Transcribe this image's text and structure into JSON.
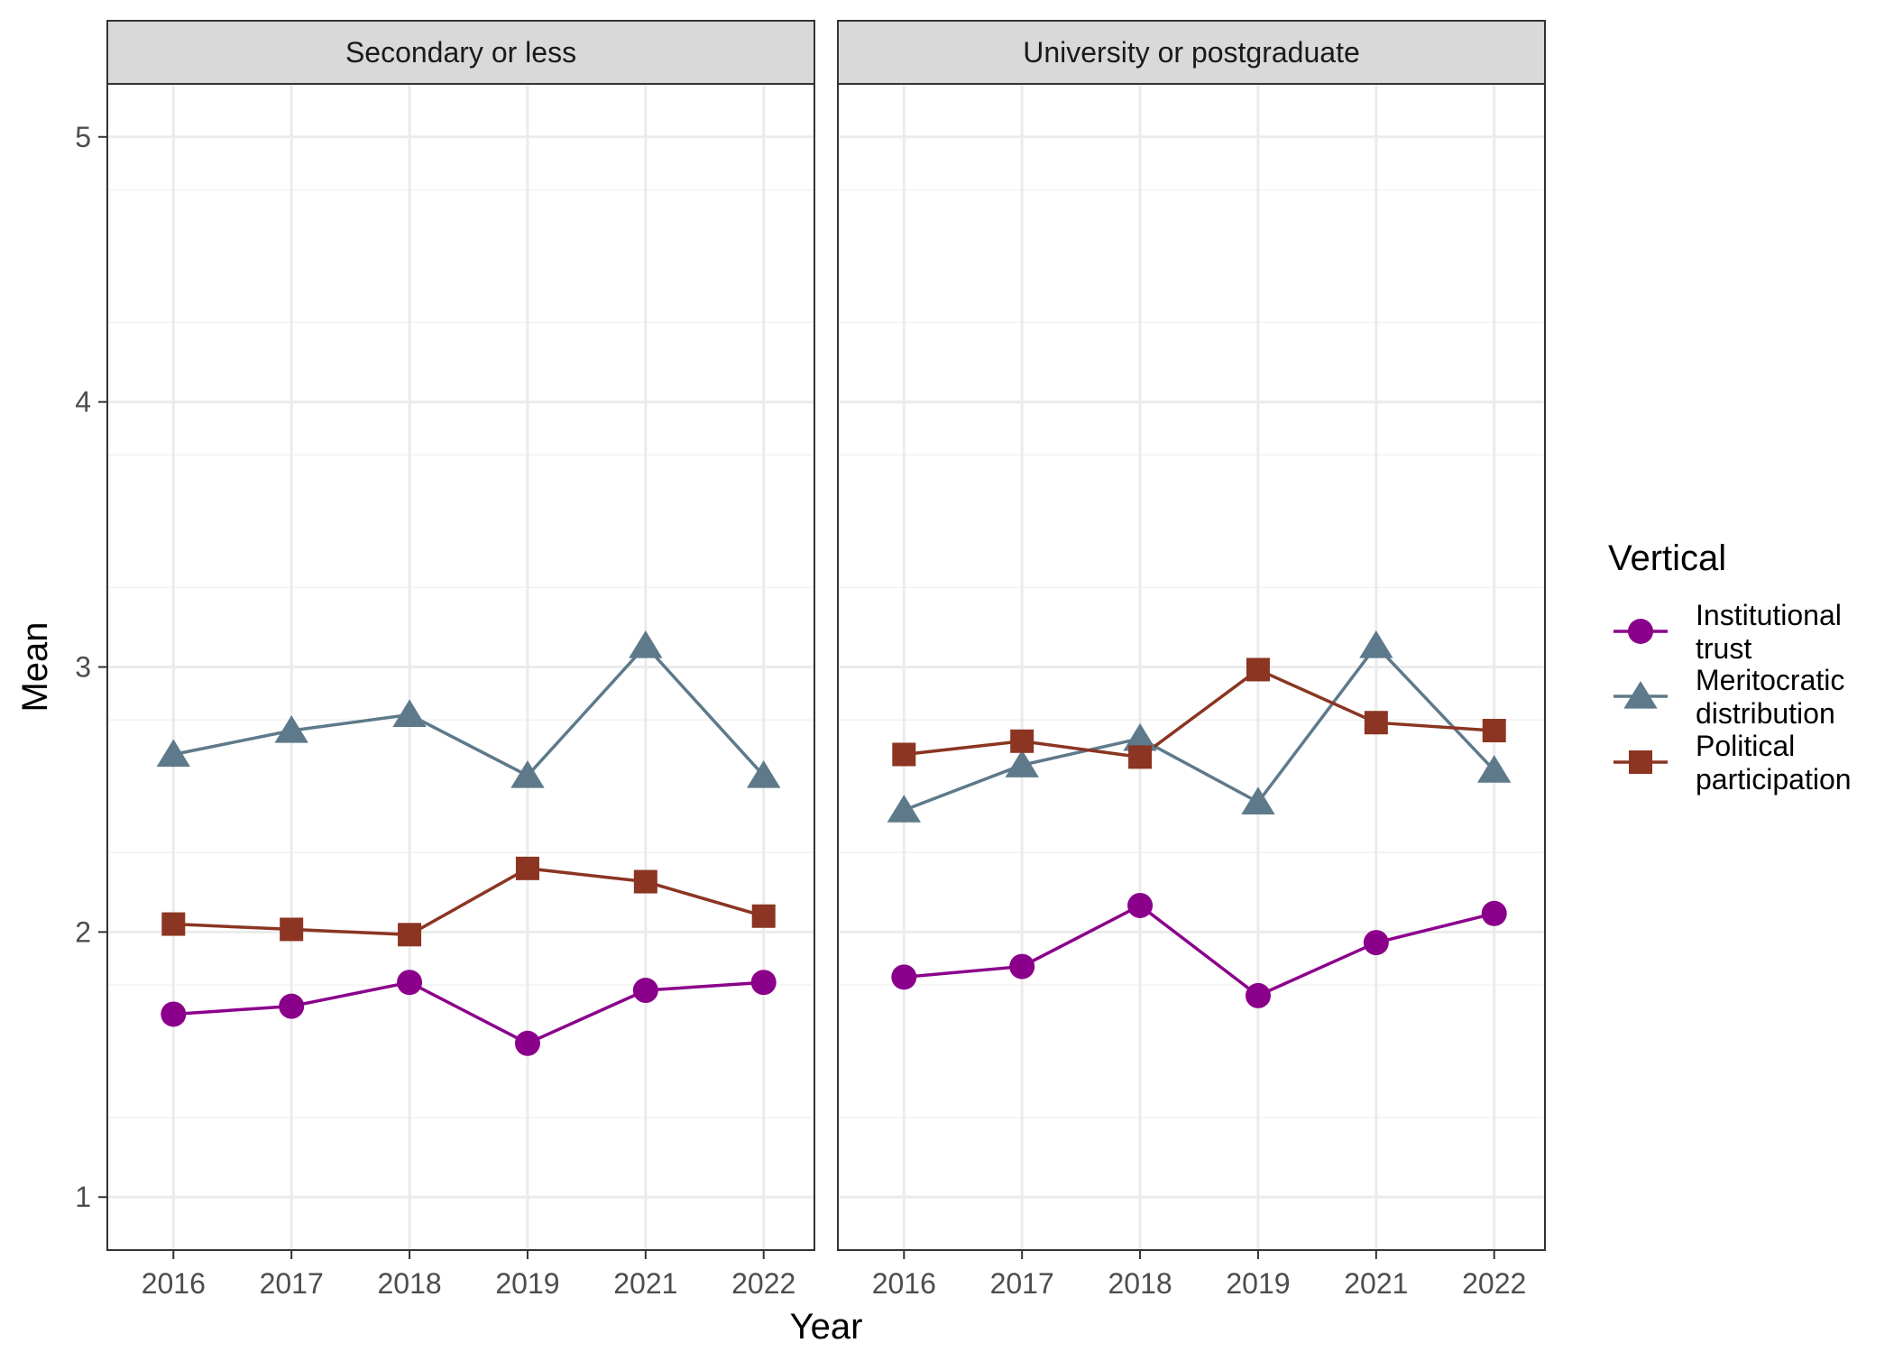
{
  "chart_data": {
    "type": "line",
    "xlabel": "Year",
    "ylabel": "Mean",
    "ylim": [
      0.8,
      5.2
    ],
    "yticks": [
      1,
      2,
      3,
      4,
      5
    ],
    "grid": true,
    "legend_position": "right",
    "categories": [
      "2016",
      "2017",
      "2018",
      "2019",
      "2021",
      "2022"
    ],
    "legend": {
      "title": "Vertical",
      "entries": [
        {
          "label_lines": [
            "Institutional",
            "trust"
          ],
          "color": "#8B008B",
          "shape": "circle"
        },
        {
          "label_lines": [
            "Meritocratic",
            "distribution"
          ],
          "color": "#5E7A8A",
          "shape": "triangle"
        },
        {
          "label_lines": [
            "Political",
            "participation"
          ],
          "color": "#8B3522",
          "shape": "square"
        }
      ]
    },
    "panels": [
      {
        "title": "Secondary or less",
        "series": [
          {
            "name": "Institutional trust",
            "shape": "circle",
            "color": "#8B008B",
            "values": [
              1.69,
              1.72,
              1.81,
              1.58,
              1.78,
              1.81
            ]
          },
          {
            "name": "Meritocratic distribution",
            "shape": "triangle",
            "color": "#5E7A8A",
            "values": [
              2.67,
              2.76,
              2.82,
              2.59,
              3.08,
              2.59
            ]
          },
          {
            "name": "Political participation",
            "shape": "square",
            "color": "#8B3522",
            "values": [
              2.03,
              2.01,
              1.99,
              2.24,
              2.19,
              2.06
            ]
          }
        ]
      },
      {
        "title": "University or postgraduate",
        "series": [
          {
            "name": "Institutional trust",
            "shape": "circle",
            "color": "#8B008B",
            "values": [
              1.83,
              1.87,
              2.1,
              1.76,
              1.96,
              2.07
            ]
          },
          {
            "name": "Meritocratic distribution",
            "shape": "triangle",
            "color": "#5E7A8A",
            "values": [
              2.46,
              2.63,
              2.73,
              2.49,
              3.08,
              2.61
            ]
          },
          {
            "name": "Political participation",
            "shape": "square",
            "color": "#8B3522",
            "values": [
              2.67,
              2.72,
              2.66,
              2.99,
              2.79,
              2.76
            ]
          }
        ]
      }
    ]
  }
}
